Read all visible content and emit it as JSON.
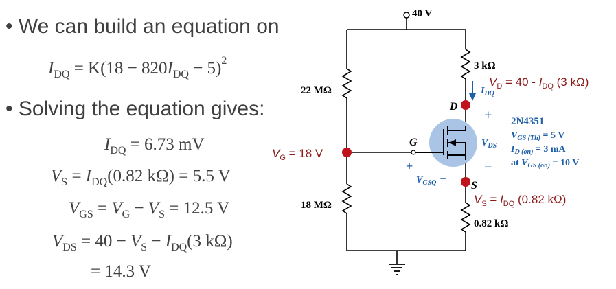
{
  "bullets": [
    "We can build an equation on",
    "Solving the equation gives:"
  ],
  "equations": {
    "eq1": {
      "lhs": "I",
      "lhs_sub": "DQ",
      "mid": " = K(18 − 820",
      "var": "I",
      "var_sub": "DQ",
      "tail": " − 5)",
      "exp": "2"
    },
    "eq2": {
      "lhs": "I",
      "lhs_sub": "DQ",
      "rest": " = 6.73 mV"
    },
    "eq3": {
      "lhs": "V",
      "lhs_sub": "S",
      "mid": " = ",
      "var": "I",
      "var_sub": "DQ",
      "tail": "(0.82 kΩ) = 5.5 V"
    },
    "eq4": {
      "lhs": "V",
      "lhs_sub": "GS",
      "mid": " = ",
      "v1": "V",
      "v1_sub": "G",
      "minus": " − ",
      "v2": "V",
      "v2_sub": "S",
      "tail": " = 12.5 V"
    },
    "eq5": {
      "lhs": "V",
      "lhs_sub": "DS",
      "mid": " = 40 − ",
      "v1": "V",
      "v1_sub": "S",
      "minus": " − ",
      "v2": "I",
      "v2_sub": "DQ",
      "tail": "(3 kΩ)"
    },
    "eq6": "= 14.3 V"
  },
  "circuit": {
    "supply": "40 V",
    "rd": "3 kΩ",
    "r1": "22 MΩ",
    "r2": "18 MΩ",
    "rs": "0.82 kΩ",
    "node_d": "D",
    "node_g": "G",
    "node_s": "S",
    "plus": "+",
    "minus": "−",
    "vds_label": {
      "v": "V",
      "sub": "DS"
    },
    "vgsq_label": {
      "v": "V",
      "sub": "GSQ",
      "sign": "−"
    },
    "idq_label": {
      "v": "I",
      "sub": "DQ"
    },
    "vd_annotation": {
      "v": "V",
      "sub": "D",
      "rest": " = 40 - ",
      "i": "I",
      "isub": "DQ",
      "tail": " (3 kΩ)"
    },
    "vg_annotation": {
      "v": "V",
      "sub": "G",
      "rest": " = 18 V"
    },
    "vs_annotation": {
      "v": "V",
      "sub": "S",
      "rest": " = ",
      "i": "I",
      "isub": "DQ",
      "tail": " (0.82 kΩ)"
    },
    "specs": {
      "part": "2N4351",
      "line1": {
        "v": "V",
        "sub": "GS (Th)",
        "rest": " = 5 V"
      },
      "line2": {
        "v": "I",
        "sub": "D (on)",
        "rest": " = 3 mA"
      },
      "line3": {
        "pre": "at ",
        "v": "V",
        "sub": "GS (on)",
        "rest": " = 10 V"
      }
    }
  },
  "colors": {
    "text": "#404040",
    "annotation": "#8b1a1a",
    "node": "#c0141c",
    "blue": "#1f5fa8",
    "mosfet_fill": "#a9c4e4"
  }
}
